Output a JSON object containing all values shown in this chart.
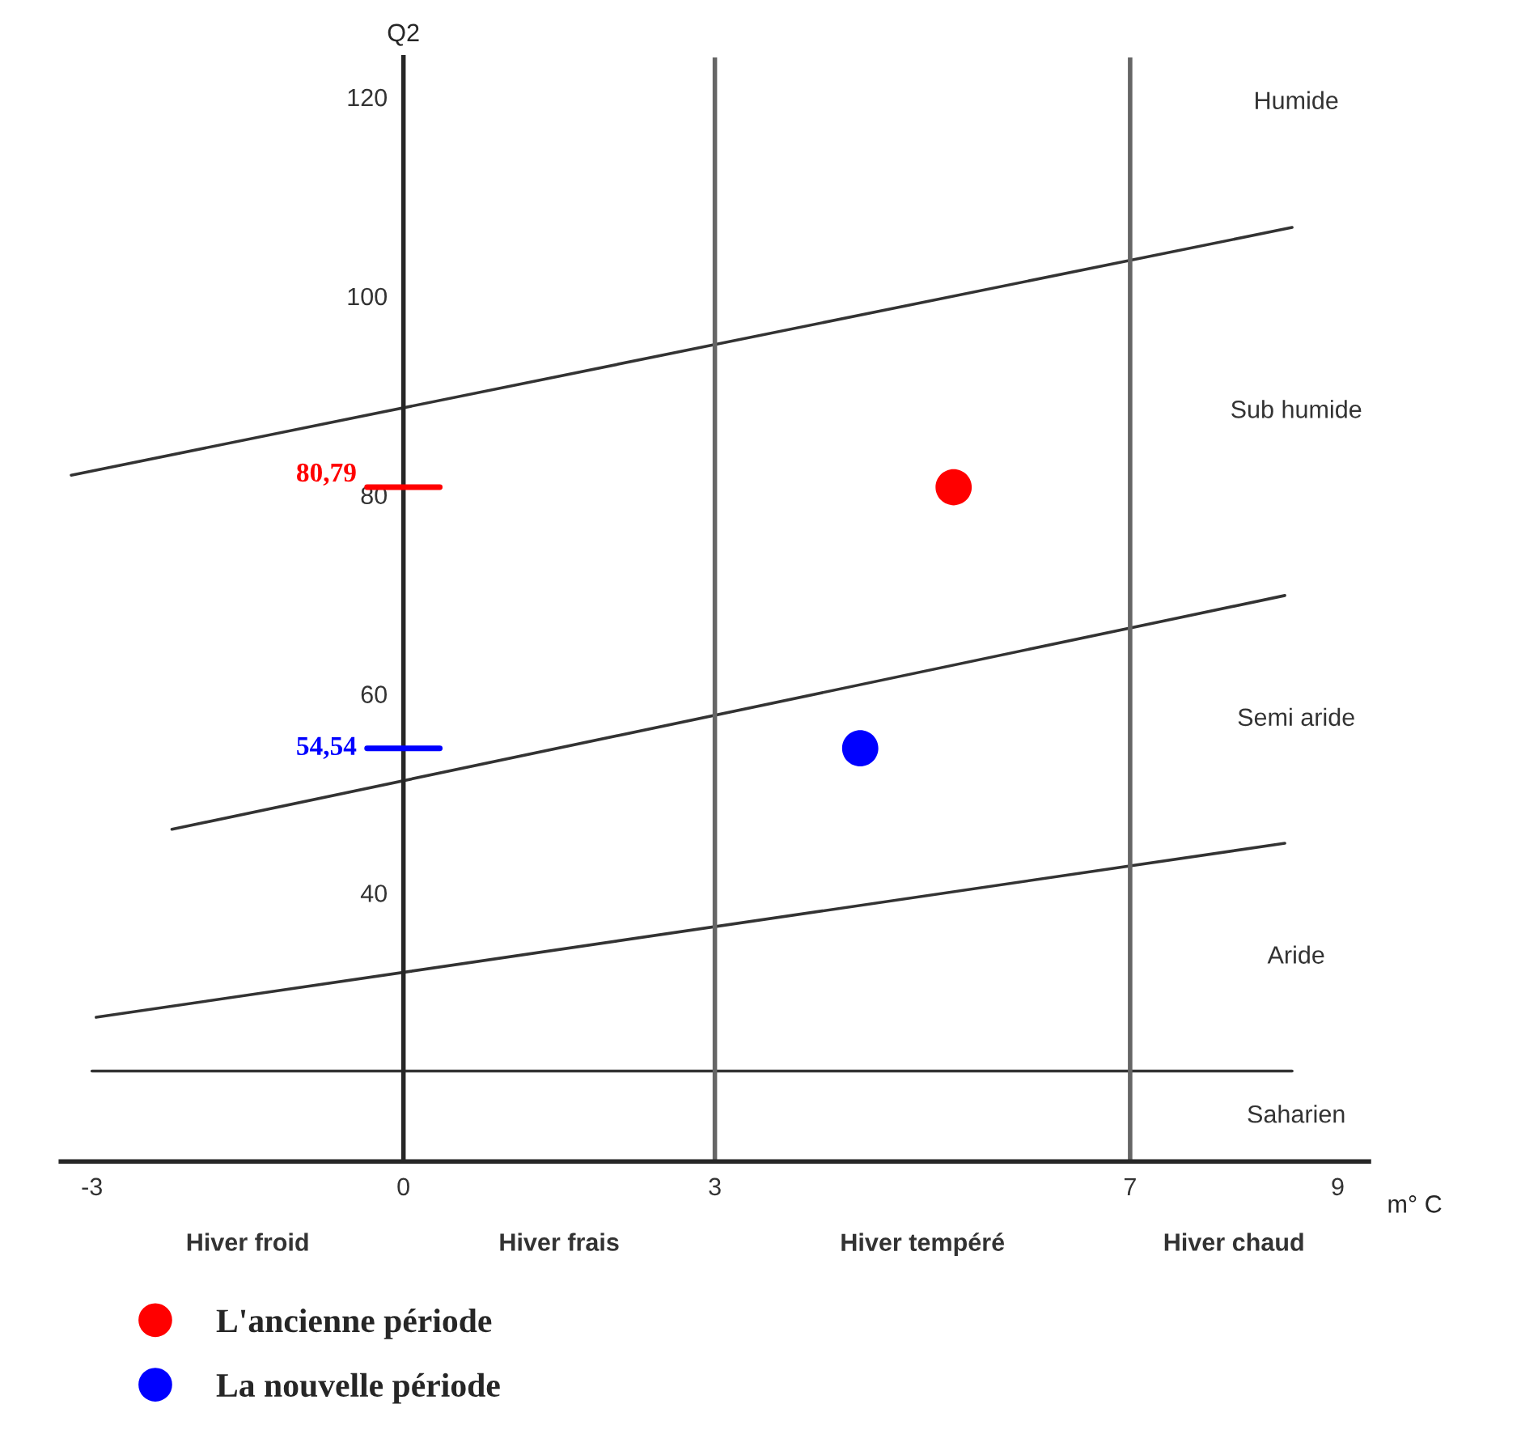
{
  "chart_data": {
    "type": "scatter",
    "xlabel": "m° C",
    "ylabel": "Q2",
    "xlim": [
      -3.3,
      9.3
    ],
    "ylim": [
      13,
      124
    ],
    "xticks": [
      -3,
      0,
      3,
      7,
      9
    ],
    "yticks": [
      40,
      60,
      80,
      100,
      120
    ],
    "marker": "circle",
    "legend": "bottom left",
    "grid": false,
    "series": [
      {
        "name": "L'ancienne période",
        "color": "#ff0000",
        "x": [
          5.3
        ],
        "values": [
          80.79
        ]
      },
      {
        "name": "La nouvelle période",
        "color": "#0000ff",
        "x": [
          4.4
        ],
        "values": [
          54.54
        ]
      },
      {
        "type": "line",
        "marker": "none",
        "color": "#333333",
        "x": [
          -3.2,
          8.56
        ],
        "values": [
          82,
          106.9
        ]
      },
      {
        "type": "line",
        "marker": "none",
        "color": "#333333",
        "x": [
          -2.23,
          8.49
        ],
        "values": [
          46.4,
          69.9
        ]
      },
      {
        "type": "line",
        "marker": "none",
        "color": "#333333",
        "x": [
          -2.96,
          8.49
        ],
        "values": [
          27.5,
          45
        ]
      },
      {
        "type": "line",
        "marker": "none",
        "color": "#333333",
        "x": [
          -3,
          8.56
        ],
        "values": [
          22.1,
          22.1
        ]
      }
    ],
    "ref_lines": [
      {
        "axis": "x",
        "value": 3,
        "color": "#666666"
      },
      {
        "axis": "x",
        "value": 7,
        "color": "#666666"
      }
    ],
    "annotations": [
      "80,79",
      "54,54",
      "Humide",
      "Sub humide",
      "Semi aride",
      "Aride",
      "Saharien",
      "Hiver froid",
      "Hiver frais",
      "Hiver tempéré",
      "Hiver chaud"
    ]
  }
}
